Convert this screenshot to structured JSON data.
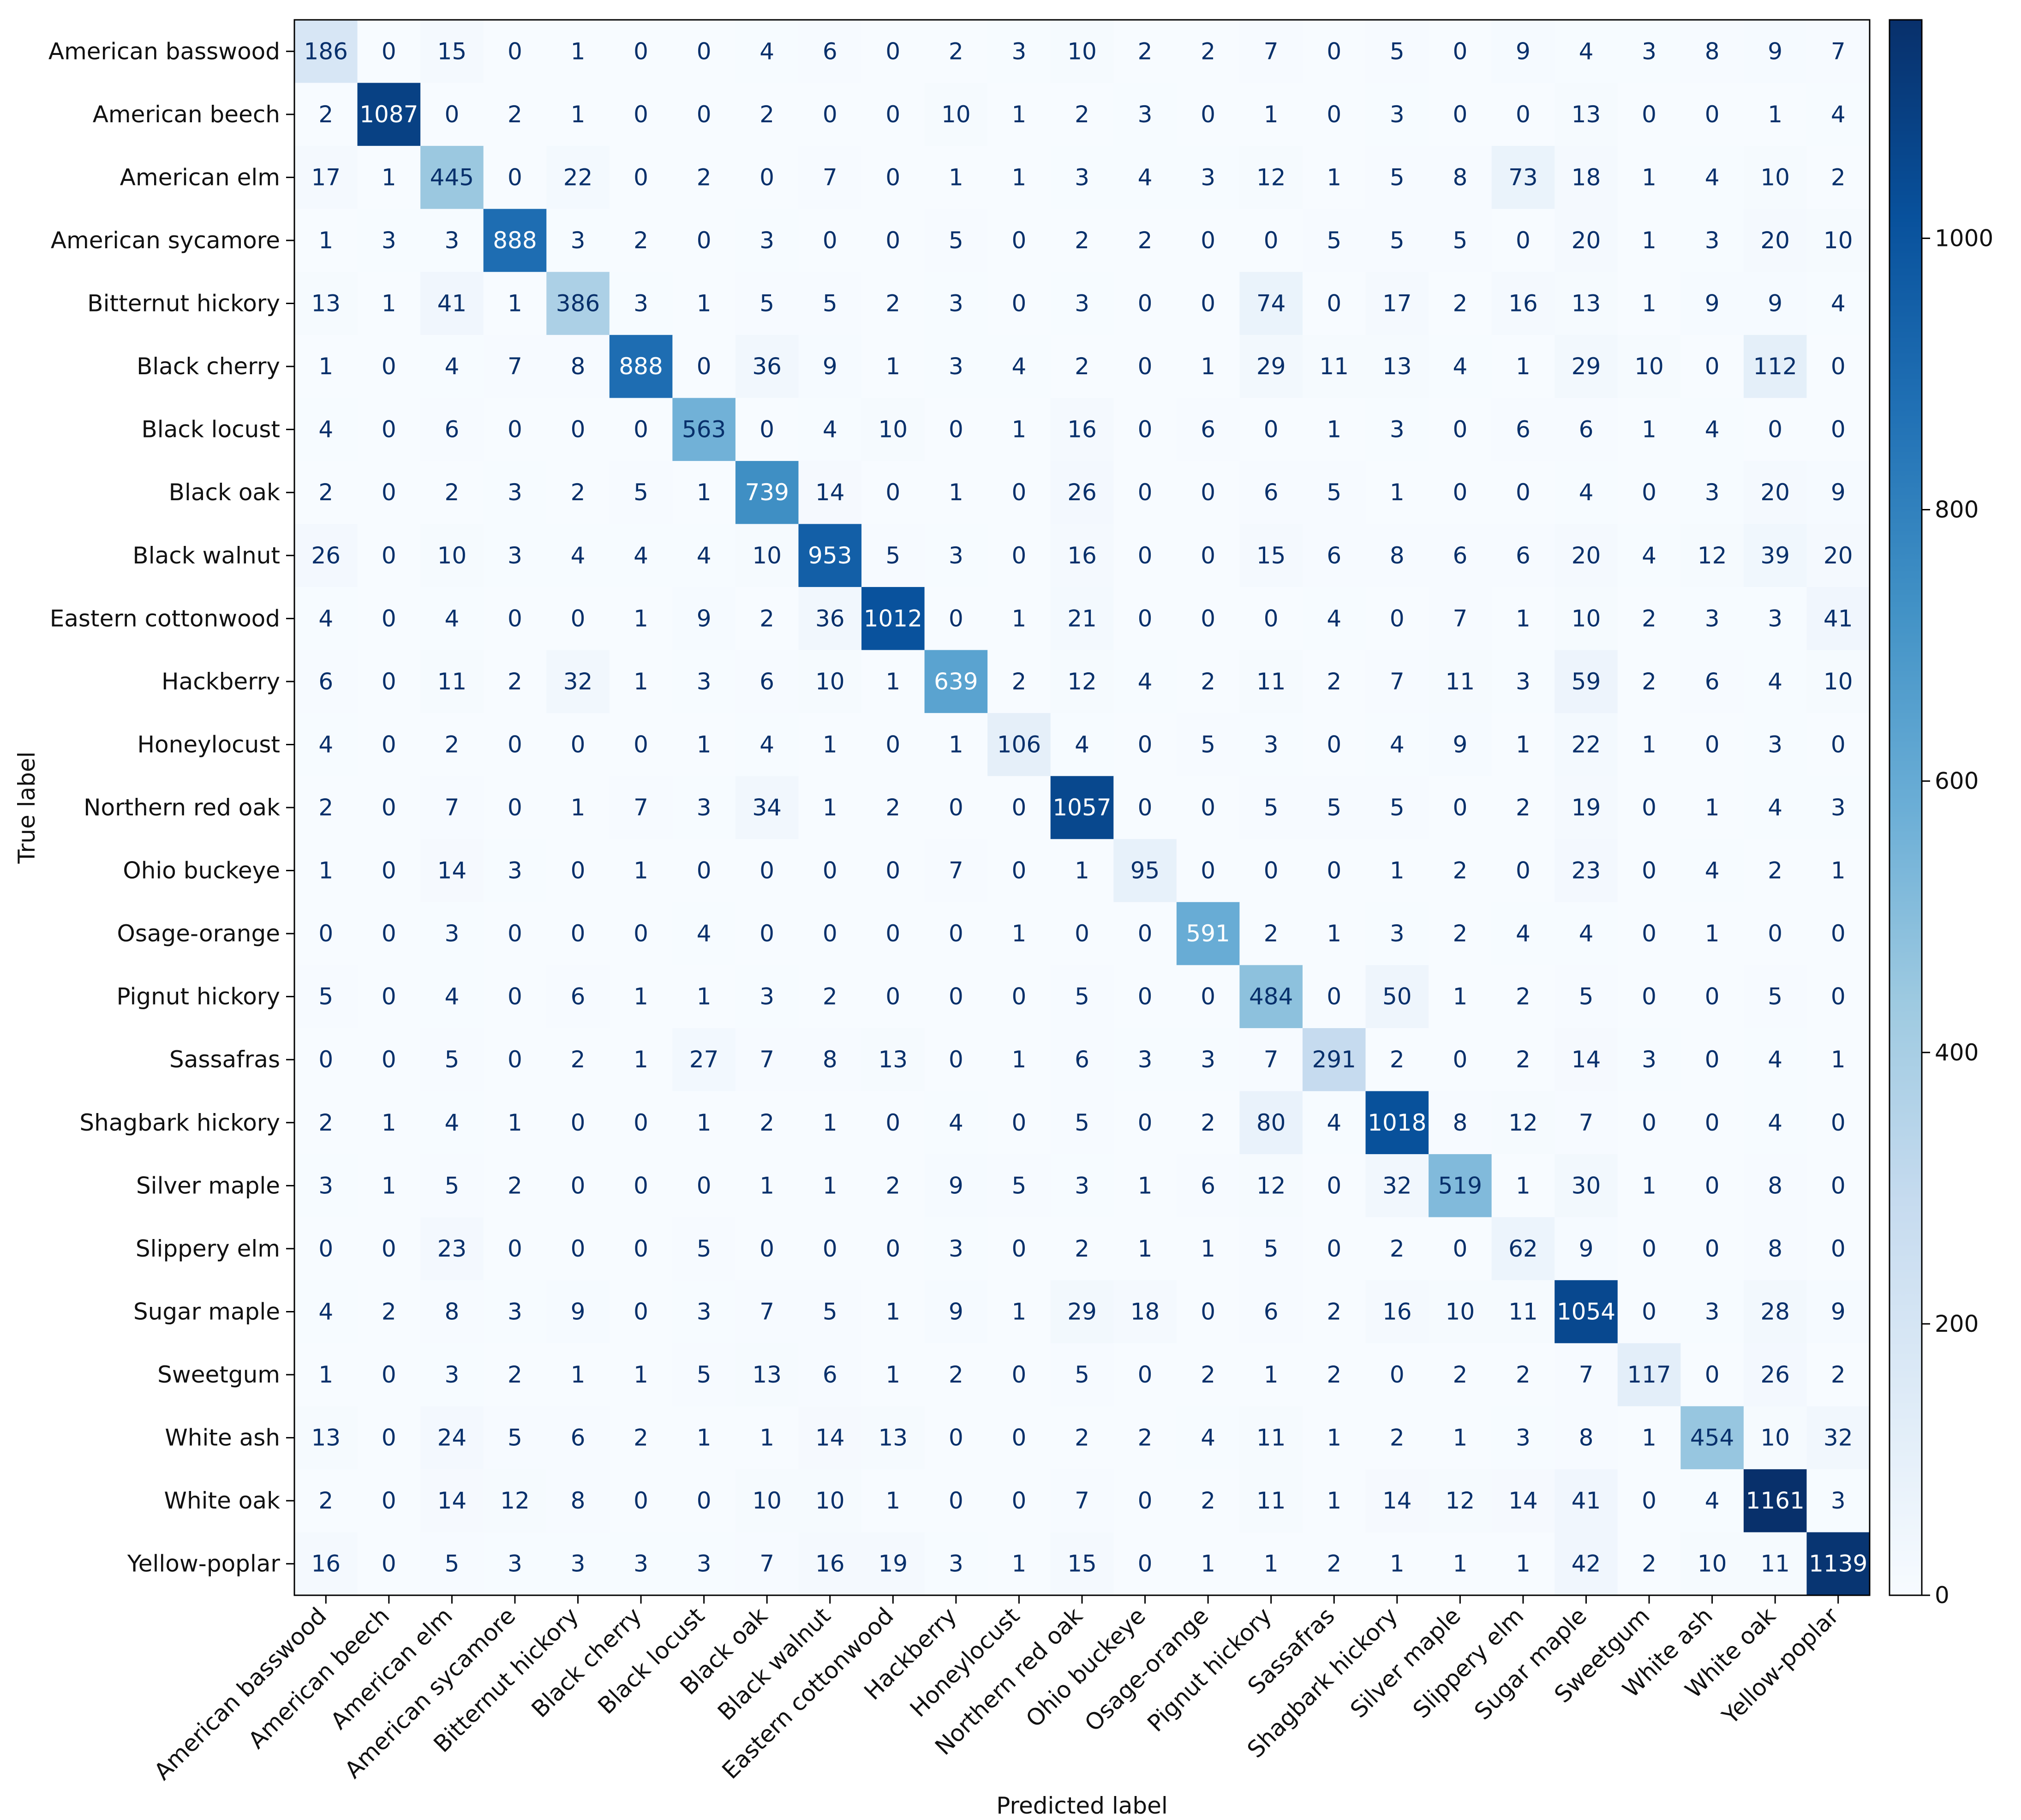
{
  "chart_data": {
    "type": "heatmap",
    "title": "",
    "xlabel": "Predicted label",
    "ylabel": "True label",
    "labels": [
      "American basswood",
      "American beech",
      "American elm",
      "American sycamore",
      "Bitternut hickory",
      "Black cherry",
      "Black locust",
      "Black oak",
      "Black walnut",
      "Eastern cottonwood",
      "Hackberry",
      "Honeylocust",
      "Northern red oak",
      "Ohio buckeye",
      "Osage-orange",
      "Pignut hickory",
      "Sassafras",
      "Shagbark hickory",
      "Silver maple",
      "Slippery elm",
      "Sugar maple",
      "Sweetgum",
      "White ash",
      "White oak",
      "Yellow-poplar"
    ],
    "matrix": [
      [
        186,
        0,
        15,
        0,
        1,
        0,
        0,
        4,
        6,
        0,
        2,
        3,
        10,
        2,
        2,
        7,
        0,
        5,
        0,
        9,
        4,
        3,
        8,
        9,
        7
      ],
      [
        2,
        1087,
        0,
        2,
        1,
        0,
        0,
        2,
        0,
        0,
        10,
        1,
        2,
        3,
        0,
        1,
        0,
        3,
        0,
        0,
        13,
        0,
        0,
        1,
        4
      ],
      [
        17,
        1,
        445,
        0,
        22,
        0,
        2,
        0,
        7,
        0,
        1,
        1,
        3,
        4,
        3,
        12,
        1,
        5,
        8,
        73,
        18,
        1,
        4,
        10,
        2
      ],
      [
        1,
        3,
        3,
        888,
        3,
        2,
        0,
        3,
        0,
        0,
        5,
        0,
        2,
        2,
        0,
        0,
        5,
        5,
        5,
        0,
        20,
        1,
        3,
        20,
        10
      ],
      [
        13,
        1,
        41,
        1,
        386,
        3,
        1,
        5,
        5,
        2,
        3,
        0,
        3,
        0,
        0,
        74,
        0,
        17,
        2,
        16,
        13,
        1,
        9,
        9,
        4
      ],
      [
        1,
        0,
        4,
        7,
        8,
        888,
        0,
        36,
        9,
        1,
        3,
        4,
        2,
        0,
        1,
        29,
        11,
        13,
        4,
        1,
        29,
        10,
        0,
        112,
        0
      ],
      [
        4,
        0,
        6,
        0,
        0,
        0,
        563,
        0,
        4,
        10,
        0,
        1,
        16,
        0,
        6,
        0,
        1,
        3,
        0,
        6,
        6,
        1,
        4,
        0,
        0
      ],
      [
        2,
        0,
        2,
        3,
        2,
        5,
        1,
        739,
        14,
        0,
        1,
        0,
        26,
        0,
        0,
        6,
        5,
        1,
        0,
        0,
        4,
        0,
        3,
        20,
        9
      ],
      [
        26,
        0,
        10,
        3,
        4,
        4,
        4,
        10,
        953,
        5,
        3,
        0,
        16,
        0,
        0,
        15,
        6,
        8,
        6,
        6,
        20,
        4,
        12,
        39,
        20
      ],
      [
        4,
        0,
        4,
        0,
        0,
        1,
        9,
        2,
        36,
        1012,
        0,
        1,
        21,
        0,
        0,
        0,
        4,
        0,
        7,
        1,
        10,
        2,
        3,
        3,
        41
      ],
      [
        6,
        0,
        11,
        2,
        32,
        1,
        3,
        6,
        10,
        1,
        639,
        2,
        12,
        4,
        2,
        11,
        2,
        7,
        11,
        3,
        59,
        2,
        6,
        4,
        10
      ],
      [
        4,
        0,
        2,
        0,
        0,
        0,
        1,
        4,
        1,
        0,
        1,
        106,
        4,
        0,
        5,
        3,
        0,
        4,
        9,
        1,
        22,
        1,
        0,
        3,
        0
      ],
      [
        2,
        0,
        7,
        0,
        1,
        7,
        3,
        34,
        1,
        2,
        0,
        0,
        1057,
        0,
        0,
        5,
        5,
        5,
        0,
        2,
        19,
        0,
        1,
        4,
        3
      ],
      [
        1,
        0,
        14,
        3,
        0,
        1,
        0,
        0,
        0,
        0,
        7,
        0,
        1,
        95,
        0,
        0,
        0,
        1,
        2,
        0,
        23,
        0,
        4,
        2,
        1
      ],
      [
        0,
        0,
        3,
        0,
        0,
        0,
        4,
        0,
        0,
        0,
        0,
        1,
        0,
        0,
        591,
        2,
        1,
        3,
        2,
        4,
        4,
        0,
        1,
        0,
        0
      ],
      [
        5,
        0,
        4,
        0,
        6,
        1,
        1,
        3,
        2,
        0,
        0,
        0,
        5,
        0,
        0,
        484,
        0,
        50,
        1,
        2,
        5,
        0,
        0,
        5,
        0
      ],
      [
        0,
        0,
        5,
        0,
        2,
        1,
        27,
        7,
        8,
        13,
        0,
        1,
        6,
        3,
        3,
        7,
        291,
        2,
        0,
        2,
        14,
        3,
        0,
        4,
        1
      ],
      [
        2,
        1,
        4,
        1,
        0,
        0,
        1,
        2,
        1,
        0,
        4,
        0,
        5,
        0,
        2,
        80,
        4,
        1018,
        8,
        12,
        7,
        0,
        0,
        4,
        0
      ],
      [
        3,
        1,
        5,
        2,
        0,
        0,
        0,
        1,
        1,
        2,
        9,
        5,
        3,
        1,
        6,
        12,
        0,
        32,
        519,
        1,
        30,
        1,
        0,
        8,
        0
      ],
      [
        0,
        0,
        23,
        0,
        0,
        0,
        5,
        0,
        0,
        0,
        3,
        0,
        2,
        1,
        1,
        5,
        0,
        2,
        0,
        62,
        9,
        0,
        0,
        8,
        0
      ],
      [
        4,
        2,
        8,
        3,
        9,
        0,
        3,
        7,
        5,
        1,
        9,
        1,
        29,
        18,
        0,
        6,
        2,
        16,
        10,
        11,
        1054,
        0,
        3,
        28,
        9
      ],
      [
        1,
        0,
        3,
        2,
        1,
        1,
        5,
        13,
        6,
        1,
        2,
        0,
        5,
        0,
        2,
        1,
        2,
        0,
        2,
        2,
        7,
        117,
        0,
        26,
        2
      ],
      [
        13,
        0,
        24,
        5,
        6,
        2,
        1,
        1,
        14,
        13,
        0,
        0,
        2,
        2,
        4,
        11,
        1,
        2,
        1,
        3,
        8,
        1,
        454,
        10,
        32
      ],
      [
        2,
        0,
        14,
        12,
        8,
        0,
        0,
        10,
        10,
        1,
        0,
        0,
        7,
        0,
        2,
        11,
        1,
        14,
        12,
        14,
        41,
        0,
        4,
        1161,
        3
      ],
      [
        16,
        0,
        5,
        3,
        3,
        3,
        3,
        7,
        16,
        19,
        3,
        1,
        15,
        0,
        1,
        1,
        2,
        1,
        1,
        1,
        42,
        2,
        10,
        11,
        1139
      ]
    ],
    "colormap": "Blues",
    "vmin": 0,
    "vmax": 1161,
    "colorbar_ticks": [
      0,
      200,
      400,
      600,
      800,
      1000
    ]
  }
}
